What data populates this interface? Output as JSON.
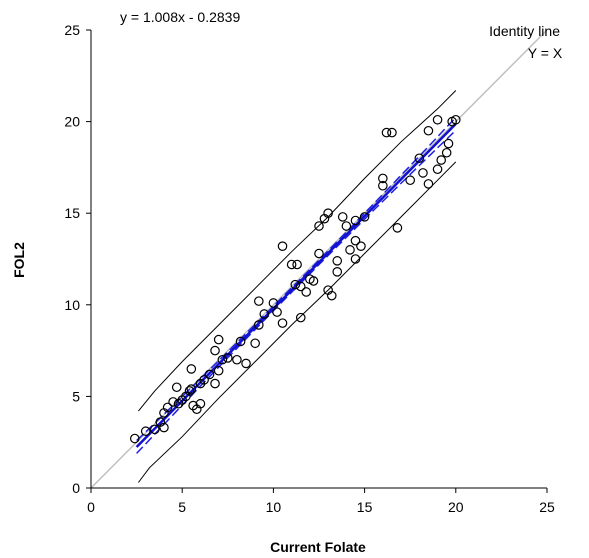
{
  "chart_data": {
    "type": "scatter",
    "title": "",
    "xlabel": "Current Folate",
    "ylabel": "FOL2",
    "xlim": [
      0,
      25
    ],
    "ylim": [
      0,
      25
    ],
    "xticks": [
      "0",
      "5",
      "10",
      "15",
      "20",
      "25"
    ],
    "yticks": [
      "0",
      "5",
      "10",
      "15",
      "20",
      "25"
    ],
    "grid": false,
    "equation": "y = 1.008x - 0.2839",
    "identity_label": "Identity line",
    "identity_formula": "Y = X",
    "regression": {
      "slope": 1.008,
      "intercept": -0.2839,
      "x_range": [
        2.5,
        20
      ]
    },
    "confidence_band": {
      "x_range": [
        2.5,
        20
      ],
      "lower_offset_at_ends": 0.35,
      "lower_offset_at_center": 0.12
    },
    "prediction_band": {
      "upper": [
        [
          2.6,
          4.2
        ],
        [
          3.5,
          5.3
        ],
        [
          5.0,
          6.9
        ],
        [
          7.0,
          8.9
        ],
        [
          9.0,
          10.9
        ],
        [
          11.0,
          12.9
        ],
        [
          13.0,
          14.8
        ],
        [
          15.0,
          16.9
        ],
        [
          17.0,
          18.9
        ],
        [
          19.0,
          20.7
        ],
        [
          20.0,
          21.7
        ]
      ],
      "lower": [
        [
          2.6,
          0.3
        ],
        [
          3.2,
          1.1
        ],
        [
          5.0,
          2.8
        ],
        [
          7.0,
          4.9
        ],
        [
          9.0,
          6.9
        ],
        [
          11.0,
          8.9
        ],
        [
          13.0,
          10.8
        ],
        [
          15.0,
          12.8
        ],
        [
          17.0,
          14.8
        ],
        [
          19.0,
          16.8
        ],
        [
          20.0,
          17.8
        ]
      ]
    },
    "points": [
      [
        2.4,
        2.7
      ],
      [
        3.0,
        3.1
      ],
      [
        3.5,
        3.2
      ],
      [
        3.8,
        3.6
      ],
      [
        4.0,
        4.1
      ],
      [
        4.2,
        4.4
      ],
      [
        4.5,
        4.7
      ],
      [
        4.0,
        3.3
      ],
      [
        4.8,
        4.6
      ],
      [
        5.0,
        4.8
      ],
      [
        5.2,
        5.0
      ],
      [
        5.4,
        5.3
      ],
      [
        5.5,
        5.4
      ],
      [
        4.7,
        5.5
      ],
      [
        5.6,
        4.5
      ],
      [
        5.8,
        4.3
      ],
      [
        6.0,
        4.6
      ],
      [
        6.0,
        5.7
      ],
      [
        6.2,
        5.9
      ],
      [
        5.5,
        6.5
      ],
      [
        6.5,
        6.2
      ],
      [
        6.8,
        5.7
      ],
      [
        7.0,
        6.4
      ],
      [
        7.2,
        7.0
      ],
      [
        6.8,
        7.5
      ],
      [
        7.0,
        8.1
      ],
      [
        7.5,
        7.1
      ],
      [
        8.0,
        7.0
      ],
      [
        8.2,
        8.0
      ],
      [
        8.5,
        6.8
      ],
      [
        9.0,
        7.9
      ],
      [
        9.2,
        8.9
      ],
      [
        9.5,
        9.5
      ],
      [
        9.2,
        10.2
      ],
      [
        10.0,
        10.1
      ],
      [
        10.2,
        9.6
      ],
      [
        10.5,
        9.0
      ],
      [
        10.5,
        13.2
      ],
      [
        11.0,
        12.2
      ],
      [
        11.2,
        11.1
      ],
      [
        11.3,
        12.2
      ],
      [
        11.5,
        11.0
      ],
      [
        11.8,
        10.7
      ],
      [
        11.5,
        9.3
      ],
      [
        12.0,
        11.4
      ],
      [
        12.2,
        11.3
      ],
      [
        12.5,
        12.8
      ],
      [
        12.5,
        14.3
      ],
      [
        12.8,
        14.7
      ],
      [
        13.0,
        15.0
      ],
      [
        13.0,
        10.8
      ],
      [
        13.2,
        10.5
      ],
      [
        13.5,
        12.4
      ],
      [
        13.5,
        11.8
      ],
      [
        13.8,
        14.8
      ],
      [
        14.0,
        14.3
      ],
      [
        14.2,
        13.0
      ],
      [
        14.5,
        14.6
      ],
      [
        14.5,
        13.5
      ],
      [
        14.8,
        13.2
      ],
      [
        14.5,
        12.5
      ],
      [
        15.0,
        14.8
      ],
      [
        16.0,
        16.5
      ],
      [
        16.0,
        16.9
      ],
      [
        16.2,
        19.4
      ],
      [
        16.5,
        19.4
      ],
      [
        16.8,
        14.2
      ],
      [
        17.5,
        16.8
      ],
      [
        18.0,
        18.0
      ],
      [
        18.2,
        17.2
      ],
      [
        18.5,
        16.6
      ],
      [
        18.5,
        19.5
      ],
      [
        19.0,
        17.4
      ],
      [
        19.0,
        20.1
      ],
      [
        19.2,
        17.9
      ],
      [
        19.5,
        18.3
      ],
      [
        19.8,
        20.0
      ],
      [
        20.0,
        20.1
      ],
      [
        19.6,
        18.8
      ]
    ]
  }
}
